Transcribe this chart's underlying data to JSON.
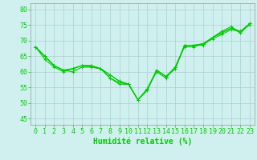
{
  "x": [
    0,
    1,
    2,
    3,
    4,
    5,
    6,
    7,
    8,
    9,
    10,
    11,
    12,
    13,
    14,
    15,
    16,
    17,
    18,
    19,
    20,
    21,
    22,
    23
  ],
  "lines": [
    [
      68,
      65,
      62,
      60.5,
      60,
      61.5,
      61.5,
      61,
      59,
      57,
      56,
      51,
      54,
      60.5,
      58.5,
      61,
      68.5,
      68.5,
      68.5,
      71,
      73,
      74.5,
      72.5,
      75.5
    ],
    [
      68,
      65,
      62,
      60.5,
      61,
      62,
      61.5,
      61,
      59,
      57,
      56,
      51,
      54.5,
      60.5,
      58.5,
      61,
      68.5,
      68.5,
      69,
      71,
      72.5,
      74,
      72.5,
      75.5
    ],
    [
      68,
      65,
      62,
      60.5,
      61,
      62,
      62,
      61,
      58,
      56.5,
      56,
      51,
      54.5,
      60.5,
      58.5,
      61.5,
      68.5,
      68.5,
      69,
      71,
      72.5,
      74,
      73,
      75.5
    ],
    [
      68,
      64,
      61.5,
      60,
      61,
      62,
      62,
      61,
      58,
      56,
      56,
      51,
      54.5,
      60,
      58,
      61.5,
      68,
      68,
      69,
      70.5,
      72,
      73.5,
      73,
      75
    ]
  ],
  "line_color": "#00cc00",
  "bg_color": "#d0f0f0",
  "grid_color": "#aacfcf",
  "xlabel": "Humidité relative (%)",
  "ylim": [
    43,
    82
  ],
  "xlim": [
    -0.5,
    23.5
  ],
  "yticks": [
    45,
    50,
    55,
    60,
    65,
    70,
    75,
    80
  ],
  "xticks": [
    0,
    1,
    2,
    3,
    4,
    5,
    6,
    7,
    8,
    9,
    10,
    11,
    12,
    13,
    14,
    15,
    16,
    17,
    18,
    19,
    20,
    21,
    22,
    23
  ],
  "tick_fontsize": 6,
  "xlabel_fontsize": 7,
  "marker": "+",
  "markersize": 3,
  "linewidth": 0.8
}
